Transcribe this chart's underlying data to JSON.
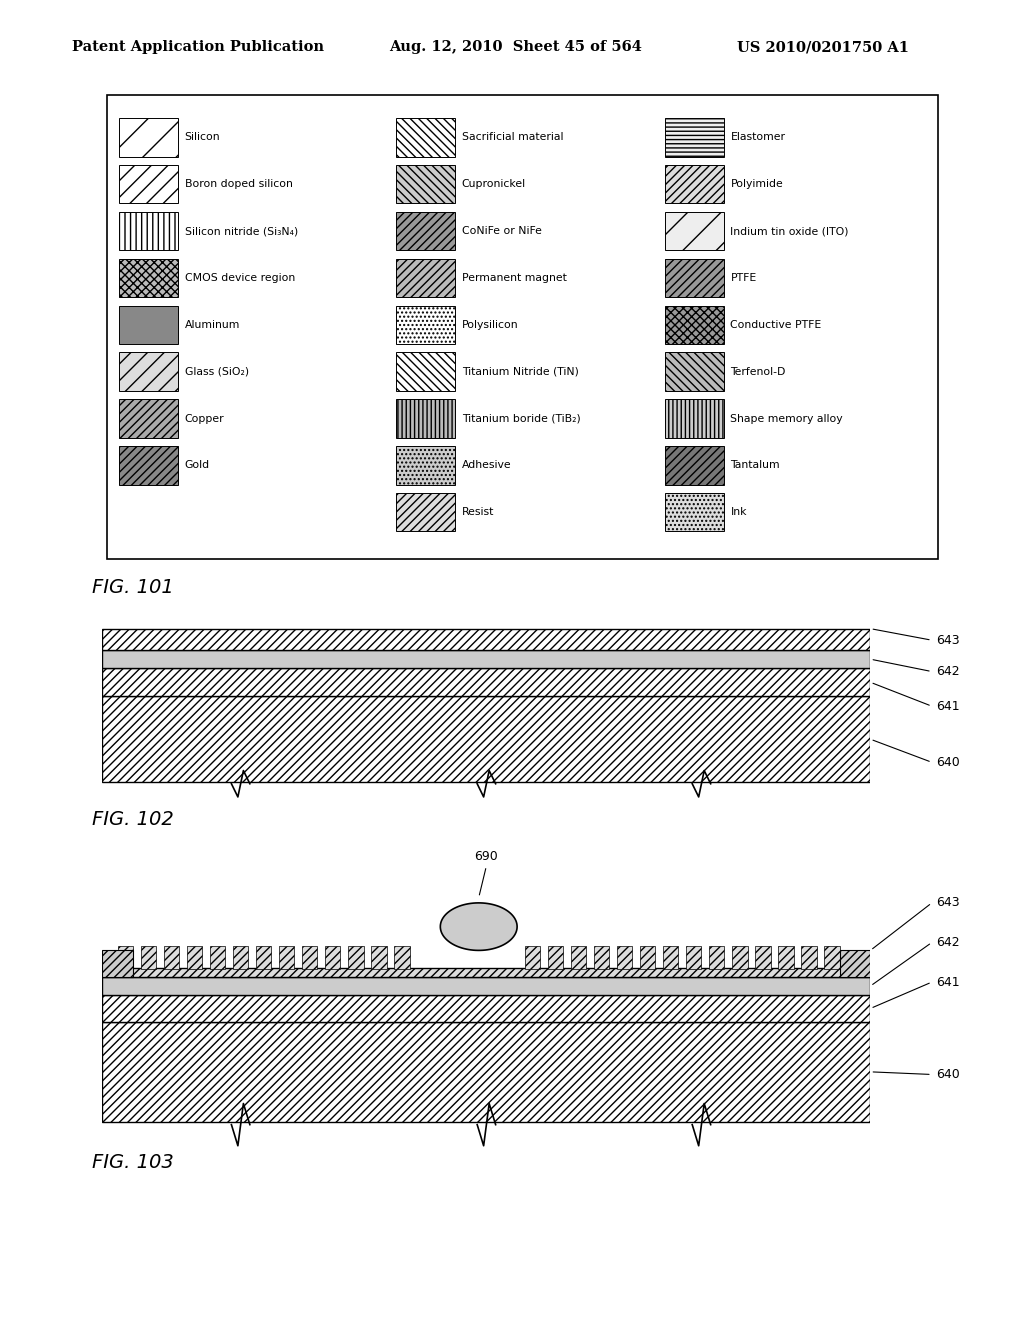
{
  "header_left": "Patent Application Publication",
  "header_mid": "Aug. 12, 2010  Sheet 45 of 564",
  "header_right": "US 2010/0201750 A1",
  "fig101_label": "FIG. 101",
  "fig102_label": "FIG. 102",
  "fig103_label": "FIG. 103",
  "legend_cols": [
    [
      {
        "label": "Silicon",
        "hatch": "/",
        "fc": "white"
      },
      {
        "label": "Boron doped silicon",
        "hatch": "//",
        "fc": "white"
      },
      {
        "label": "Silicon nitride (Si₃N₄)",
        "hatch": "|||",
        "fc": "white"
      },
      {
        "label": "CMOS device region",
        "hatch": "xxxx",
        "fc": "#bbbbbb"
      },
      {
        "label": "Aluminum",
        "hatch": "",
        "fc": "#888888"
      },
      {
        "label": "Glass (SiO₂)",
        "hatch": "//",
        "fc": "#dddddd"
      },
      {
        "label": "Copper",
        "hatch": "////",
        "fc": "#aaaaaa"
      },
      {
        "label": "Gold",
        "hatch": "////",
        "fc": "#888888"
      }
    ],
    [
      {
        "label": "Sacrificial material",
        "hatch": "\\\\\\\\",
        "fc": "white"
      },
      {
        "label": "Cupronickel",
        "hatch": "\\\\\\\\",
        "fc": "#cccccc"
      },
      {
        "label": "CoNiFe or NiFe",
        "hatch": "////",
        "fc": "#999999"
      },
      {
        "label": "Permanent magnet",
        "hatch": "////",
        "fc": "#bbbbbb"
      },
      {
        "label": "Polysilicon",
        "hatch": "....",
        "fc": "white"
      },
      {
        "label": "Titanium Nitride (TiN)",
        "hatch": "\\\\\\\\",
        "fc": "white"
      },
      {
        "label": "Titanium boride (TiB₂)",
        "hatch": "||||",
        "fc": "#bbbbbb"
      },
      {
        "label": "Adhesive",
        "hatch": "....",
        "fc": "#cccccc"
      },
      {
        "label": "Resist",
        "hatch": "////",
        "fc": "#dddddd"
      }
    ],
    [
      {
        "label": "Elastomer",
        "hatch": "----",
        "fc": "#eeeeee"
      },
      {
        "label": "Polyimide",
        "hatch": "////",
        "fc": "#dddddd"
      },
      {
        "label": "Indium tin oxide (ITO)",
        "hatch": "/",
        "fc": "#eeeeee"
      },
      {
        "label": "PTFE",
        "hatch": "////",
        "fc": "#999999"
      },
      {
        "label": "Conductive PTFE",
        "hatch": "xxxx",
        "fc": "#999999"
      },
      {
        "label": "Terfenol-D",
        "hatch": "\\\\\\\\",
        "fc": "#bbbbbb"
      },
      {
        "label": "Shape memory alloy",
        "hatch": "||||",
        "fc": "#cccccc"
      },
      {
        "label": "Tantalum",
        "hatch": "////",
        "fc": "#777777"
      },
      {
        "label": "Ink",
        "hatch": "....",
        "fc": "#dddddd"
      }
    ]
  ],
  "bg_color": "white",
  "text_color": "black"
}
